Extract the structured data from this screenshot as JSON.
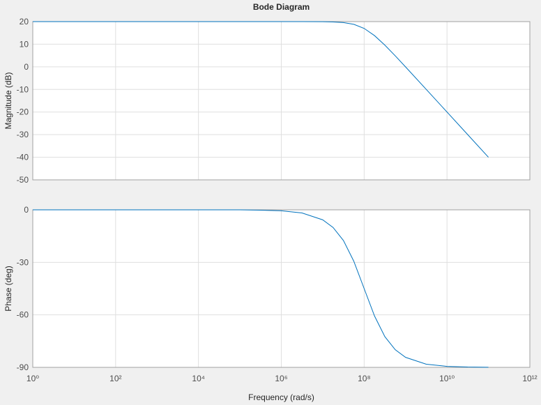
{
  "chart_data": [
    {
      "type": "line",
      "title": "Bode Diagram",
      "y_label": "Magnitude (dB)",
      "x": [
        1,
        10,
        100,
        1000,
        10000,
        100000,
        316227.77,
        1000000,
        3162277.7,
        10000000,
        17782794,
        31622777,
        56234133,
        100000000,
        177827941,
        316227766,
        562341325,
        1000000000,
        3162277660,
        10000000000,
        31622776602,
        100000000000
      ],
      "series": [
        {
          "name": "Magnitude",
          "color": "#0072bd",
          "values": [
            20,
            20,
            20,
            20,
            20,
            20,
            20,
            20,
            19.996,
            19.96,
            19.86,
            19.59,
            18.81,
            16.99,
            13.81,
            9.59,
            4.87,
            -0.04,
            -10,
            -20,
            -30,
            -40
          ]
        }
      ],
      "xlim": [
        1,
        1000000000000
      ],
      "log_x": true,
      "xticks": [
        {
          "value": 1,
          "label": "10⁰"
        },
        {
          "value": 100,
          "label": "10²"
        },
        {
          "value": 10000,
          "label": "10⁴"
        },
        {
          "value": 1000000,
          "label": "10⁶"
        },
        {
          "value": 100000000,
          "label": "10⁸"
        },
        {
          "value": 10000000000,
          "label": "10¹⁰"
        },
        {
          "value": 1000000000000,
          "label": "10¹²"
        }
      ],
      "ylim": [
        -50,
        20
      ],
      "yticks": [
        -50,
        -40,
        -30,
        -20,
        -10,
        0,
        10,
        20
      ],
      "grid": true
    },
    {
      "type": "line",
      "y_label": "Phase (deg)",
      "x_label": "Frequency (rad/s)",
      "x": [
        1,
        10,
        100,
        1000,
        10000,
        100000,
        316227.77,
        1000000,
        3162277.7,
        10000000,
        17782794,
        31622777,
        56234133,
        100000000,
        177827941,
        316227766,
        562341325,
        1000000000,
        3162277660,
        10000000000,
        31622776602,
        100000000000
      ],
      "series": [
        {
          "name": "Phase",
          "color": "#0072bd",
          "values": [
            0,
            0,
            0,
            0,
            0,
            0,
            -0.18,
            -0.57,
            -1.81,
            -5.71,
            -10.1,
            -17.55,
            -29.36,
            -45,
            -60.64,
            -72.45,
            -79.92,
            -84.29,
            -88.19,
            -89.43,
            -89.82,
            -89.94
          ]
        }
      ],
      "xlim": [
        1,
        1000000000000
      ],
      "log_x": true,
      "xticks": [
        {
          "value": 1,
          "label": "10⁰"
        },
        {
          "value": 100,
          "label": "10²"
        },
        {
          "value": 10000,
          "label": "10⁴"
        },
        {
          "value": 1000000,
          "label": "10⁶"
        },
        {
          "value": 100000000,
          "label": "10⁸"
        },
        {
          "value": 10000000000,
          "label": "10¹⁰"
        },
        {
          "value": 1000000000000,
          "label": "10¹²"
        }
      ],
      "ylim": [
        -90,
        0
      ],
      "yticks": [
        -90,
        -60,
        -30,
        0
      ],
      "grid": true
    }
  ]
}
